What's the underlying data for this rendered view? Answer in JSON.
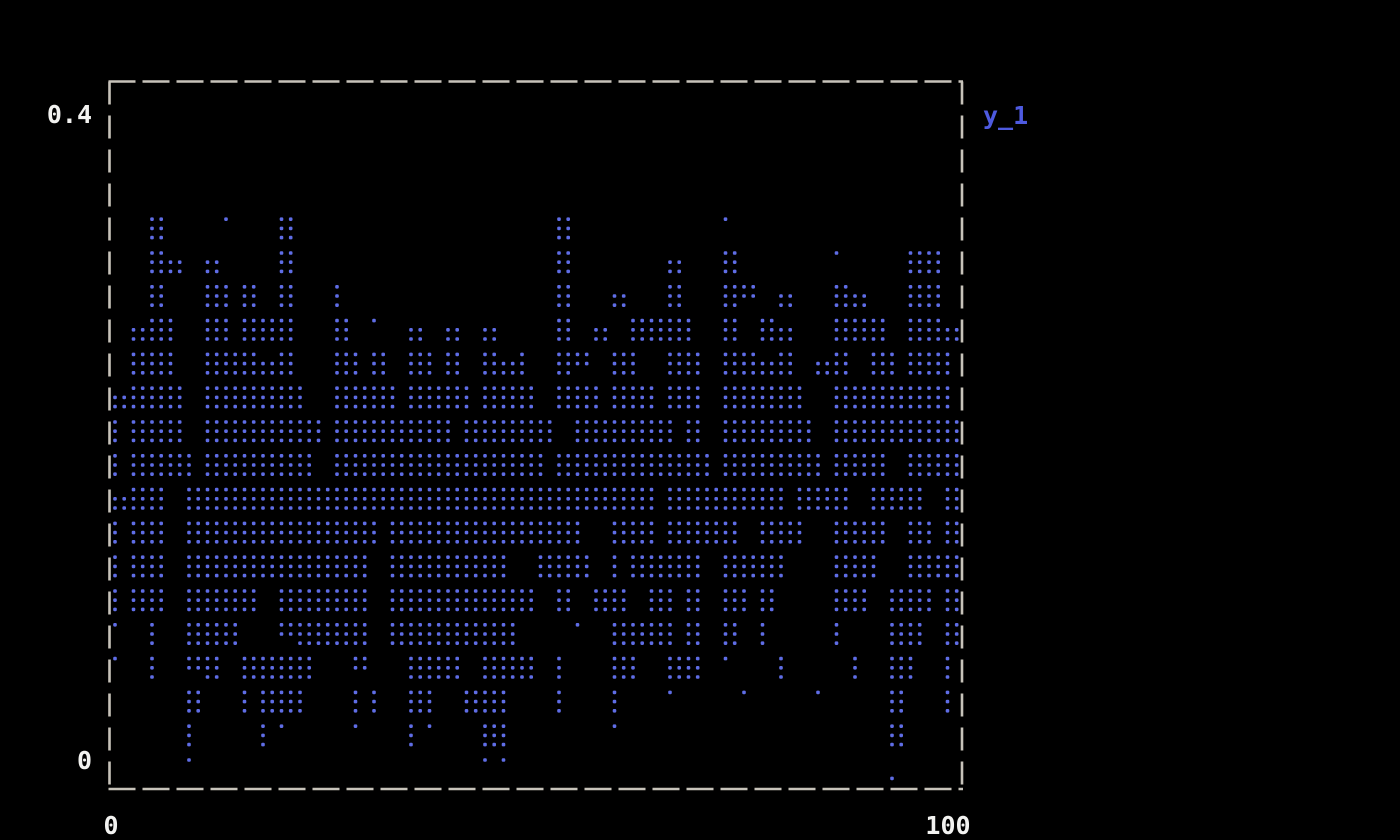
{
  "figure": {
    "background_color": "#000000"
  },
  "axes": {
    "y_tick_labels": [
      "0.4",
      "0"
    ],
    "x_tick_labels": [
      "0",
      "100"
    ],
    "frame_color": "#c7c3ba",
    "tick_label_color": "#f2f2f0"
  },
  "legend": {
    "label": "y_1",
    "color": "#4e5ae0",
    "position": "top-right"
  },
  "chart_data": {
    "type": "scatter",
    "marker": "braille-dot",
    "title": "",
    "xlabel": "",
    "ylabel": "",
    "xlim": [
      0,
      100
    ],
    "ylim": [
      0,
      0.4
    ],
    "x_ticks": [
      0,
      100
    ],
    "y_ticks": [
      0,
      0.4
    ],
    "grid": false,
    "series": [
      {
        "name": "y_1",
        "color": "#5f6de6"
      }
    ],
    "dot_grid_encoding": "each char = one 2x3 braille cell: 8=full, |=left column, r=right column, n=top 4 dots, ,=bottom 4 dots, 1=single top dot, o=single bottom dot, .=empty",
    "grid_rows": [
      "..............................................",
      "..............................................",
      "..............................................",
      "..............................................",
      "..8...1..8..............8........1............",
      "..8,.,...8..............8.....,..8.....1...88.",
      "..8..8|8.8..|...........8..,..8..8n.,..8,..88.",
      ".,8|.8|888..8.1.,.,.,...8.,.888|.8.8,..888.88,",
      ".88|.888,8..8|8.8|8.8,|.8n.8|.88.88,8.,8.8|88|",
      ",888.88888|.888|888|888.88|88|88.8888|.888888|",
      "|888.888888|888888|88888.88888|8.88888.8888888",
      "|888|888888.88888888888|88888888|88888|888.888",
      ",88.8888888888888888888888888|888888|888.888.8",
      "|88.8888888888|8888888888|.88|8888.88|.888.8|8",
      "|88.8888888888.888888|.888.|8888.888|..88|.888",
      "|88.8888.88888.88888888.8.88.8|8.8|8...88.88|8",
      "1.|.888..n8888.8888888...1.888|8.8.|...|..88.8",
      "1.|.n8.8888..n..888.888.|..8|.88.1..|...|.8|.|",
      "....8..|88|..||.8|.88|..|..|..1...1...1...8..|",
      "....|...|1...1..|1..8|.....1..............8...",
      "....1...............11....................o..."
    ]
  }
}
